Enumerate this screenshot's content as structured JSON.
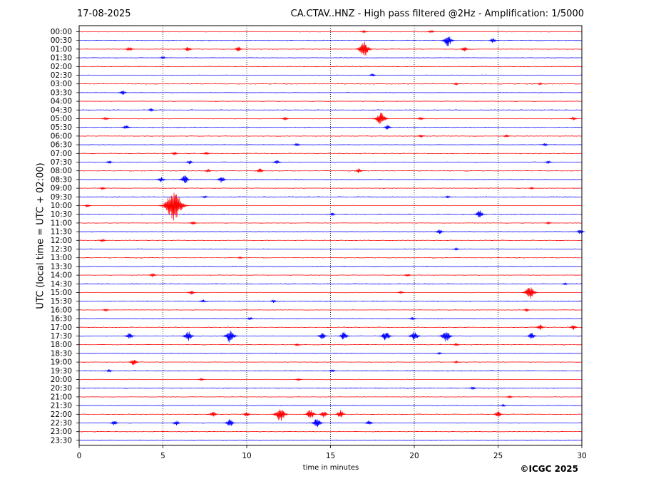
{
  "header": {
    "date": "17-08-2025",
    "title": "CA.CTAV..HNZ - High pass filtered @2Hz - Amplification: 1/5000"
  },
  "footer": {
    "copyright": "©ICGC 2025"
  },
  "chart_data": {
    "type": "line",
    "title": "CA.CTAV..HNZ - High pass filtered @2Hz - Amplification: 1/5000",
    "xlabel": "time in minutes",
    "ylabel": "UTC (local time = UTC + 02:00)",
    "xlim": [
      0,
      30
    ],
    "x_ticks": [
      0,
      5,
      10,
      15,
      20,
      25,
      30
    ],
    "x_tick_labels": [
      "0",
      "5",
      "10",
      "15",
      "20",
      "25",
      "30"
    ],
    "y_tick_labels": [
      "00:00",
      "00:30",
      "01:00",
      "01:30",
      "02:00",
      "02:30",
      "03:00",
      "03:30",
      "04:00",
      "04:30",
      "05:00",
      "05:30",
      "06:00",
      "06:30",
      "07:00",
      "07:30",
      "08:00",
      "08:30",
      "09:00",
      "09:30",
      "10:00",
      "10:30",
      "11:00",
      "11:30",
      "12:00",
      "12:30",
      "13:00",
      "13:30",
      "14:00",
      "14:30",
      "15:00",
      "15:30",
      "16:00",
      "16:30",
      "17:00",
      "17:30",
      "18:00",
      "18:30",
      "19:00",
      "19:30",
      "20:00",
      "20:30",
      "21:00",
      "21:30",
      "22:00",
      "22:30",
      "23:00",
      "23:30"
    ],
    "grid": "vertical dotted",
    "trace_colors": [
      "#ff0000",
      "#0000ff"
    ],
    "trace_color_rule": "alternating red/blue per half-hour row",
    "events": [
      {
        "row": "00:00",
        "minute": 17.0,
        "amplitude": 0.15
      },
      {
        "row": "00:00",
        "minute": 21.0,
        "amplitude": 0.2
      },
      {
        "row": "00:30",
        "minute": 22.0,
        "amplitude": 0.7
      },
      {
        "row": "00:30",
        "minute": 24.7,
        "amplitude": 0.3
      },
      {
        "row": "01:00",
        "minute": 3.0,
        "amplitude": 0.3
      },
      {
        "row": "01:00",
        "minute": 6.5,
        "amplitude": 0.3
      },
      {
        "row": "01:00",
        "minute": 9.5,
        "amplitude": 0.3
      },
      {
        "row": "01:00",
        "minute": 17.0,
        "amplitude": 0.9
      },
      {
        "row": "01:00",
        "minute": 23.0,
        "amplitude": 0.3
      },
      {
        "row": "01:30",
        "minute": 5.0,
        "amplitude": 0.2
      },
      {
        "row": "02:30",
        "minute": 17.5,
        "amplitude": 0.2
      },
      {
        "row": "03:00",
        "minute": 22.5,
        "amplitude": 0.15
      },
      {
        "row": "03:00",
        "minute": 27.5,
        "amplitude": 0.15
      },
      {
        "row": "03:30",
        "minute": 2.6,
        "amplitude": 0.3
      },
      {
        "row": "04:30",
        "minute": 4.3,
        "amplitude": 0.2
      },
      {
        "row": "05:00",
        "minute": 1.6,
        "amplitude": 0.2
      },
      {
        "row": "05:00",
        "minute": 12.3,
        "amplitude": 0.2
      },
      {
        "row": "05:00",
        "minute": 18.0,
        "amplitude": 0.8
      },
      {
        "row": "05:00",
        "minute": 20.4,
        "amplitude": 0.2
      },
      {
        "row": "05:00",
        "minute": 29.5,
        "amplitude": 0.2
      },
      {
        "row": "05:30",
        "minute": 2.8,
        "amplitude": 0.3
      },
      {
        "row": "05:30",
        "minute": 18.4,
        "amplitude": 0.3
      },
      {
        "row": "06:00",
        "minute": 20.4,
        "amplitude": 0.2
      },
      {
        "row": "06:00",
        "minute": 25.5,
        "amplitude": 0.2
      },
      {
        "row": "06:30",
        "minute": 13.0,
        "amplitude": 0.2
      },
      {
        "row": "06:30",
        "minute": 27.8,
        "amplitude": 0.2
      },
      {
        "row": "07:00",
        "minute": 5.7,
        "amplitude": 0.2
      },
      {
        "row": "07:00",
        "minute": 7.6,
        "amplitude": 0.2
      },
      {
        "row": "07:30",
        "minute": 1.8,
        "amplitude": 0.2
      },
      {
        "row": "07:30",
        "minute": 6.6,
        "amplitude": 0.25
      },
      {
        "row": "07:30",
        "minute": 11.8,
        "amplitude": 0.25
      },
      {
        "row": "07:30",
        "minute": 28.0,
        "amplitude": 0.2
      },
      {
        "row": "08:00",
        "minute": 7.7,
        "amplitude": 0.2
      },
      {
        "row": "08:00",
        "minute": 10.8,
        "amplitude": 0.3
      },
      {
        "row": "08:00",
        "minute": 16.7,
        "amplitude": 0.3
      },
      {
        "row": "08:30",
        "minute": 4.9,
        "amplitude": 0.35
      },
      {
        "row": "08:30",
        "minute": 6.3,
        "amplitude": 0.5
      },
      {
        "row": "08:30",
        "minute": 8.5,
        "amplitude": 0.4
      },
      {
        "row": "09:00",
        "minute": 1.4,
        "amplitude": 0.2
      },
      {
        "row": "09:00",
        "minute": 27.0,
        "amplitude": 0.15
      },
      {
        "row": "09:30",
        "minute": 7.5,
        "amplitude": 0.15
      },
      {
        "row": "09:30",
        "minute": 22.0,
        "amplitude": 0.15
      },
      {
        "row": "10:00",
        "minute": 5.65,
        "amplitude": 1.8
      },
      {
        "row": "10:00",
        "minute": 0.5,
        "amplitude": 0.2
      },
      {
        "row": "10:30",
        "minute": 15.1,
        "amplitude": 0.2
      },
      {
        "row": "10:30",
        "minute": 23.9,
        "amplitude": 0.5
      },
      {
        "row": "11:00",
        "minute": 6.8,
        "amplitude": 0.25
      },
      {
        "row": "11:00",
        "minute": 28.0,
        "amplitude": 0.15
      },
      {
        "row": "11:30",
        "minute": 21.5,
        "amplitude": 0.3
      },
      {
        "row": "11:30",
        "minute": 29.9,
        "amplitude": 0.3
      },
      {
        "row": "12:00",
        "minute": 1.4,
        "amplitude": 0.2
      },
      {
        "row": "12:30",
        "minute": 22.5,
        "amplitude": 0.15
      },
      {
        "row": "13:00",
        "minute": 9.6,
        "amplitude": 0.15
      },
      {
        "row": "14:00",
        "minute": 4.4,
        "amplitude": 0.25
      },
      {
        "row": "14:00",
        "minute": 19.6,
        "amplitude": 0.2
      },
      {
        "row": "14:30",
        "minute": 29.0,
        "amplitude": 0.15
      },
      {
        "row": "15:00",
        "minute": 6.7,
        "amplitude": 0.25
      },
      {
        "row": "15:00",
        "minute": 26.9,
        "amplitude": 0.8
      },
      {
        "row": "15:00",
        "minute": 19.2,
        "amplitude": 0.15
      },
      {
        "row": "15:30",
        "minute": 7.4,
        "amplitude": 0.2
      },
      {
        "row": "15:30",
        "minute": 11.6,
        "amplitude": 0.2
      },
      {
        "row": "16:00",
        "minute": 1.6,
        "amplitude": 0.2
      },
      {
        "row": "16:00",
        "minute": 26.7,
        "amplitude": 0.2
      },
      {
        "row": "16:30",
        "minute": 10.2,
        "amplitude": 0.2
      },
      {
        "row": "16:30",
        "minute": 19.9,
        "amplitude": 0.2
      },
      {
        "row": "17:00",
        "minute": 27.5,
        "amplitude": 0.35
      },
      {
        "row": "17:00",
        "minute": 29.5,
        "amplitude": 0.3
      },
      {
        "row": "17:30",
        "minute": 3.0,
        "amplitude": 0.4
      },
      {
        "row": "17:30",
        "minute": 6.5,
        "amplitude": 0.6
      },
      {
        "row": "17:30",
        "minute": 9.0,
        "amplitude": 0.8
      },
      {
        "row": "17:30",
        "minute": 14.5,
        "amplitude": 0.4
      },
      {
        "row": "17:30",
        "minute": 15.8,
        "amplitude": 0.5
      },
      {
        "row": "17:30",
        "minute": 18.3,
        "amplitude": 0.6
      },
      {
        "row": "17:30",
        "minute": 20.0,
        "amplitude": 0.6
      },
      {
        "row": "17:30",
        "minute": 21.9,
        "amplitude": 0.7
      },
      {
        "row": "17:30",
        "minute": 27.0,
        "amplitude": 0.4
      },
      {
        "row": "18:00",
        "minute": 13.0,
        "amplitude": 0.15
      },
      {
        "row": "18:00",
        "minute": 22.5,
        "amplitude": 0.15
      },
      {
        "row": "18:30",
        "minute": 21.5,
        "amplitude": 0.15
      },
      {
        "row": "19:00",
        "minute": 3.25,
        "amplitude": 0.4
      },
      {
        "row": "19:00",
        "minute": 22.5,
        "amplitude": 0.15
      },
      {
        "row": "19:30",
        "minute": 1.8,
        "amplitude": 0.2
      },
      {
        "row": "19:30",
        "minute": 15.1,
        "amplitude": 0.2
      },
      {
        "row": "20:00",
        "minute": 7.3,
        "amplitude": 0.15
      },
      {
        "row": "20:00",
        "minute": 13.1,
        "amplitude": 0.15
      },
      {
        "row": "20:30",
        "minute": 23.5,
        "amplitude": 0.2
      },
      {
        "row": "21:00",
        "minute": 25.7,
        "amplitude": 0.2
      },
      {
        "row": "21:30",
        "minute": 25.3,
        "amplitude": 0.15
      },
      {
        "row": "22:00",
        "minute": 8.0,
        "amplitude": 0.4
      },
      {
        "row": "22:00",
        "minute": 10.0,
        "amplitude": 0.3
      },
      {
        "row": "22:00",
        "minute": 12.0,
        "amplitude": 0.9
      },
      {
        "row": "22:00",
        "minute": 13.8,
        "amplitude": 0.6
      },
      {
        "row": "22:00",
        "minute": 14.6,
        "amplitude": 0.4
      },
      {
        "row": "22:00",
        "minute": 15.6,
        "amplitude": 0.5
      },
      {
        "row": "22:00",
        "minute": 25.0,
        "amplitude": 0.4
      },
      {
        "row": "22:30",
        "minute": 2.1,
        "amplitude": 0.3
      },
      {
        "row": "22:30",
        "minute": 5.8,
        "amplitude": 0.3
      },
      {
        "row": "22:30",
        "minute": 9.0,
        "amplitude": 0.5
      },
      {
        "row": "22:30",
        "minute": 14.2,
        "amplitude": 0.6
      },
      {
        "row": "22:30",
        "minute": 17.3,
        "amplitude": 0.3
      }
    ]
  }
}
